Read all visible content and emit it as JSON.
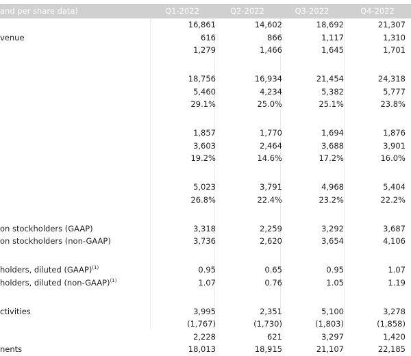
{
  "header": {
    "label": "and per share data)",
    "quarters": [
      "Q1-2022",
      "Q2-2022",
      "Q3-2022",
      "Q4-2022"
    ]
  },
  "rows": [
    {
      "label": "",
      "values": [
        "16,861",
        "14,602",
        "18,692",
        "21,307"
      ]
    },
    {
      "label": "venue",
      "values": [
        "616",
        "866",
        "1,117",
        "1,310"
      ]
    },
    {
      "label": "",
      "values": [
        "1,279",
        "1,466",
        "1,645",
        "1,701"
      ]
    },
    {
      "gap": true,
      "label": "",
      "values": [
        "",
        "",
        "",
        ""
      ]
    },
    {
      "label": "",
      "values": [
        "18,756",
        "16,934",
        "21,454",
        "24,318"
      ]
    },
    {
      "label": "",
      "values": [
        "5,460",
        "4,234",
        "5,382",
        "5,777"
      ]
    },
    {
      "label": "",
      "values": [
        "29.1%",
        "25.0%",
        "25.1%",
        "23.8%"
      ]
    },
    {
      "gap": true,
      "label": "",
      "values": [
        "",
        "",
        "",
        ""
      ]
    },
    {
      "label": "",
      "values": [
        "1,857",
        "1,770",
        "1,694",
        "1,876"
      ]
    },
    {
      "label": "",
      "values": [
        "3,603",
        "2,464",
        "3,688",
        "3,901"
      ]
    },
    {
      "label": "",
      "values": [
        "19.2%",
        "14.6%",
        "17.2%",
        "16.0%"
      ]
    },
    {
      "gap": true,
      "label": "",
      "values": [
        "",
        "",
        "",
        ""
      ]
    },
    {
      "label": "",
      "values": [
        "5,023",
        "3,791",
        "4,968",
        "5,404"
      ]
    },
    {
      "label": "",
      "values": [
        "26.8%",
        "22.4%",
        "23.2%",
        "22.2%"
      ]
    },
    {
      "gap": true,
      "label": "",
      "values": [
        "",
        "",
        "",
        ""
      ]
    },
    {
      "label": "on stockholders (GAAP)",
      "values": [
        "3,318",
        "2,259",
        "3,292",
        "3,687"
      ]
    },
    {
      "label": "on stockholders (non-GAAP)",
      "values": [
        "3,736",
        "2,620",
        "3,654",
        "4,106"
      ]
    },
    {
      "gap": true,
      "label": "",
      "values": [
        "",
        "",
        "",
        ""
      ]
    },
    {
      "label": "holders, diluted (GAAP)",
      "sup": "(1)",
      "values": [
        "0.95",
        "0.65",
        "0.95",
        "1.07"
      ]
    },
    {
      "label": "holders, diluted (non-GAAP)",
      "sup": "(1)",
      "values": [
        "1.07",
        "0.76",
        "1.05",
        "1.19"
      ]
    },
    {
      "gap": true,
      "label": "",
      "values": [
        "",
        "",
        "",
        ""
      ]
    },
    {
      "label": "ctivities",
      "values": [
        "3,995",
        "2,351",
        "5,100",
        "3,278"
      ]
    },
    {
      "label": "",
      "values": [
        "(1,767)",
        "(1,730)",
        "(1,803)",
        "(1,858)"
      ]
    },
    {
      "label": "",
      "values": [
        "2,228",
        "621",
        "3,297",
        "1,420"
      ]
    },
    {
      "label": "nents",
      "values": [
        "18,013",
        "18,915",
        "21,107",
        "22,185"
      ]
    }
  ]
}
